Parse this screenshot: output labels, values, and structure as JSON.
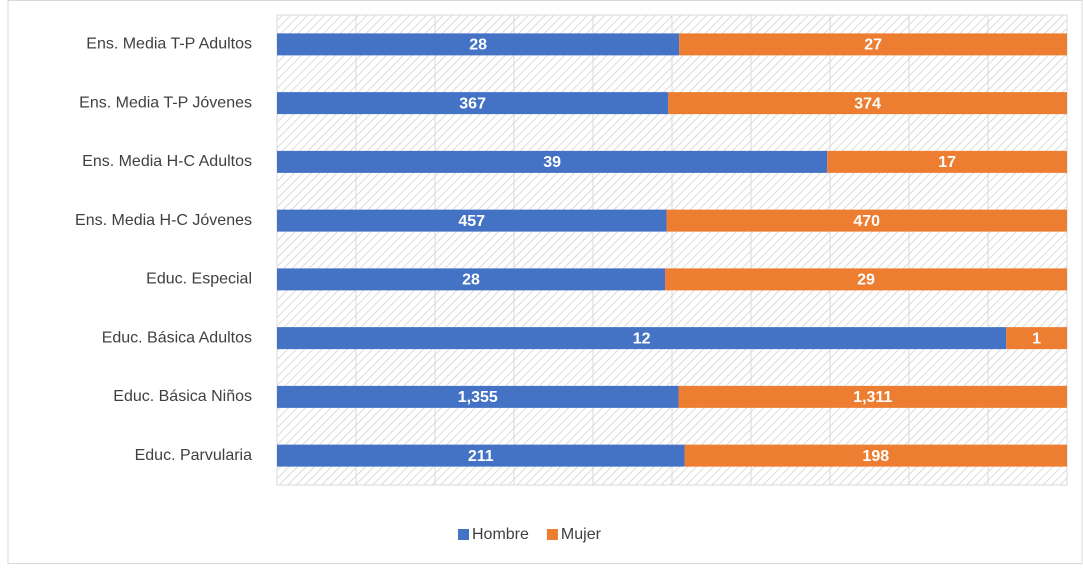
{
  "chart_data": {
    "type": "bar100h",
    "categories": [
      "Ens. Media T-P Adultos",
      "Ens. Media T-P Jóvenes",
      "Ens. Media H-C Adultos",
      "Ens. Media H-C Jóvenes",
      "Educ. Especial",
      "Educ. Básica Adultos",
      "Educ. Básica Niños",
      "Educ. Parvularia"
    ],
    "series": [
      {
        "name": "Hombre",
        "color": "#4472c4",
        "values": [
          28,
          367,
          39,
          457,
          28,
          12,
          1355,
          211
        ],
        "value_labels": [
          "28",
          "367",
          "39",
          "457",
          "28",
          "12",
          "1,355",
          "211"
        ]
      },
      {
        "name": "Mujer",
        "color": "#ed7d31",
        "values": [
          27,
          374,
          17,
          470,
          29,
          1,
          1311,
          198
        ],
        "value_labels": [
          "27",
          "374",
          "17",
          "470",
          "29",
          "1",
          "1,311",
          "198"
        ]
      }
    ],
    "xlim": [
      0,
      100
    ],
    "xticks": [
      0,
      10,
      20,
      30,
      40,
      50,
      60,
      70,
      80,
      90,
      100
    ],
    "grid": true,
    "legend": "bottom"
  }
}
